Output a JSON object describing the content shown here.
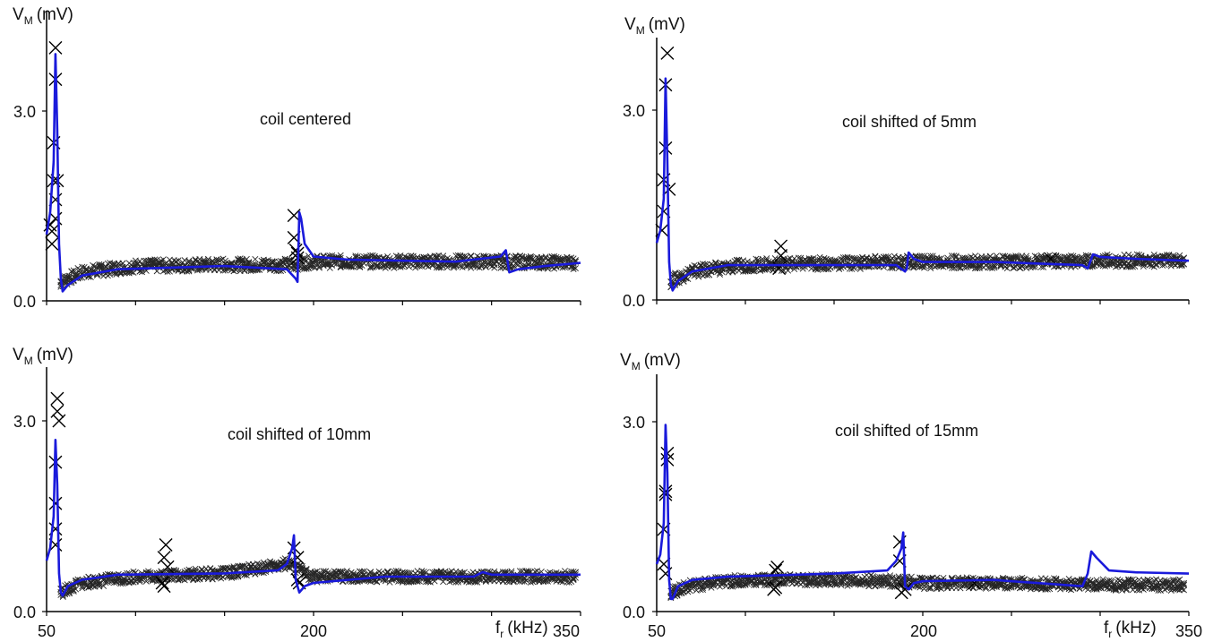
{
  "figure": {
    "ylabel_main": "V",
    "ylabel_sub": "M",
    "ylabel_unit": "(mV)",
    "xlabel_main": "f",
    "xlabel_sub": "r",
    "xlabel_unit": "(kHz)"
  },
  "colors": {
    "model_line": "#1a1adb",
    "measured_markers": "#000000",
    "axes": "#000000"
  },
  "chart_data": [
    {
      "type": "line",
      "annotation": "coil centered",
      "xlim": [
        50,
        350
      ],
      "ylim": [
        0,
        4.0
      ],
      "xticks": [],
      "yticks": [
        0.0,
        3.0
      ],
      "ytick_labels": [
        "0.0",
        "3.0"
      ],
      "series": [
        {
          "kind": "line",
          "x": [
            50,
            52,
            54,
            55,
            56,
            57,
            58,
            59,
            62,
            70,
            90,
            150,
            185,
            190,
            191,
            192,
            193,
            195,
            200,
            220,
            280,
            305,
            308,
            310,
            315,
            330,
            350
          ],
          "y": [
            1.05,
            1.4,
            2.2,
            3.9,
            2.7,
            0.9,
            0.35,
            0.15,
            0.25,
            0.4,
            0.5,
            0.55,
            0.5,
            0.35,
            0.3,
            1.4,
            1.3,
            0.9,
            0.7,
            0.65,
            0.62,
            0.7,
            0.8,
            0.45,
            0.5,
            0.55,
            0.6
          ]
        },
        {
          "kind": "marker",
          "x": [
            55,
            55,
            54,
            54,
            55,
            55,
            56,
            53,
            53,
            52,
            189,
            189,
            190,
            191,
            191
          ],
          "y": [
            4.0,
            3.5,
            2.5,
            1.9,
            1.6,
            1.3,
            1.9,
            1.1,
            0.9,
            1.2,
            1.35,
            1.0,
            0.8,
            0.75,
            0.68
          ]
        }
      ],
      "band": {
        "x": [
          58,
          70,
          100,
          150,
          185,
          200,
          250,
          300,
          350
        ],
        "center": [
          0.3,
          0.45,
          0.55,
          0.57,
          0.57,
          0.62,
          0.62,
          0.62,
          0.6
        ],
        "half_width": 0.1
      }
    },
    {
      "type": "line",
      "annotation": "coil shifted of 5mm",
      "xlim": [
        50,
        350
      ],
      "ylim": [
        0,
        4.0
      ],
      "xticks": [],
      "yticks": [
        0.0,
        3.0
      ],
      "ytick_labels": [
        "0.0",
        "3.0"
      ],
      "series": [
        {
          "kind": "line",
          "x": [
            50,
            52,
            54,
            55,
            56,
            57,
            58,
            59,
            62,
            70,
            90,
            150,
            185,
            190,
            191,
            192,
            195,
            200,
            240,
            290,
            293,
            296,
            300,
            320,
            350
          ],
          "y": [
            0.9,
            1.1,
            1.6,
            3.5,
            2.2,
            0.6,
            0.25,
            0.15,
            0.3,
            0.45,
            0.55,
            0.55,
            0.55,
            0.45,
            0.5,
            0.75,
            0.65,
            0.6,
            0.6,
            0.55,
            0.5,
            0.72,
            0.68,
            0.65,
            0.62
          ]
        },
        {
          "kind": "marker",
          "x": [
            56,
            55,
            55,
            54,
            54,
            53,
            57,
            120,
            120,
            119,
            272
          ],
          "y": [
            3.9,
            3.4,
            2.4,
            1.9,
            1.4,
            1.1,
            1.75,
            0.85,
            0.7,
            0.5,
            0.65
          ]
        }
      ],
      "band": {
        "x": [
          58,
          70,
          100,
          150,
          185,
          200,
          250,
          300,
          350
        ],
        "center": [
          0.3,
          0.45,
          0.55,
          0.58,
          0.6,
          0.6,
          0.6,
          0.62,
          0.62
        ],
        "half_width": 0.1
      }
    },
    {
      "type": "line",
      "annotation": "coil shifted of 10mm",
      "xlim": [
        50,
        350
      ],
      "ylim": [
        0,
        4.0
      ],
      "xticks": [
        50,
        200,
        350
      ],
      "yticks": [
        0.0,
        3.0
      ],
      "ytick_labels": [
        "0.0",
        "3.0"
      ],
      "series": [
        {
          "kind": "line",
          "x": [
            50,
            52,
            54,
            55,
            56,
            57,
            58,
            59,
            62,
            70,
            90,
            150,
            180,
            185,
            188,
            189,
            190,
            192,
            195,
            200,
            240,
            290,
            295,
            300,
            320,
            350
          ],
          "y": [
            0.8,
            1.0,
            1.5,
            2.7,
            2.0,
            0.6,
            0.3,
            0.25,
            0.4,
            0.5,
            0.58,
            0.6,
            0.65,
            0.75,
            1.0,
            1.2,
            0.5,
            0.3,
            0.4,
            0.45,
            0.55,
            0.55,
            0.62,
            0.58,
            0.58,
            0.58
          ]
        },
        {
          "kind": "marker",
          "x": [
            56,
            56,
            57,
            55,
            55,
            55,
            55,
            117,
            116,
            118,
            115,
            116,
            189,
            191,
            191,
            192
          ],
          "y": [
            3.35,
            3.15,
            3.0,
            2.35,
            1.7,
            1.3,
            1.05,
            1.05,
            0.85,
            0.7,
            0.45,
            0.4,
            1.0,
            0.85,
            0.5,
            0.45
          ]
        }
      ],
      "band": {
        "x": [
          58,
          70,
          100,
          150,
          185,
          200,
          250,
          300,
          350
        ],
        "center": [
          0.3,
          0.45,
          0.55,
          0.6,
          0.75,
          0.55,
          0.55,
          0.55,
          0.55
        ],
        "half_width": 0.09
      }
    },
    {
      "type": "line",
      "annotation": "coil shifted of 15mm",
      "xlim": [
        50,
        350
      ],
      "ylim": [
        0,
        4.0
      ],
      "xticks": [
        50,
        200,
        350
      ],
      "yticks": [
        0.0,
        3.0
      ],
      "ytick_labels": [
        "0.0",
        "3.0"
      ],
      "series": [
        {
          "kind": "line",
          "x": [
            50,
            52,
            54,
            55,
            56,
            57,
            58,
            59,
            62,
            70,
            90,
            150,
            180,
            185,
            188,
            189,
            190,
            192,
            195,
            200,
            240,
            290,
            293,
            295,
            298,
            305,
            320,
            350
          ],
          "y": [
            0.75,
            0.9,
            1.4,
            2.95,
            2.2,
            0.5,
            0.2,
            0.2,
            0.4,
            0.5,
            0.55,
            0.6,
            0.65,
            0.8,
            1.0,
            1.25,
            0.4,
            0.35,
            0.45,
            0.48,
            0.5,
            0.4,
            0.6,
            0.95,
            0.85,
            0.65,
            0.62,
            0.6
          ]
        },
        {
          "kind": "marker",
          "x": [
            56,
            56,
            55,
            55,
            54,
            54,
            55,
            118,
            117,
            117,
            116,
            187,
            187,
            188,
            190,
            229
          ],
          "y": [
            2.5,
            2.4,
            1.9,
            1.85,
            1.3,
            0.75,
            0.6,
            0.7,
            0.65,
            0.38,
            0.35,
            1.1,
            0.8,
            0.3,
            0.35,
            0.45
          ]
        }
      ],
      "band": {
        "x": [
          58,
          70,
          100,
          150,
          185,
          200,
          250,
          300,
          350
        ],
        "center": [
          0.3,
          0.42,
          0.5,
          0.5,
          0.48,
          0.45,
          0.45,
          0.42,
          0.42
        ],
        "half_width": 0.09
      }
    }
  ]
}
